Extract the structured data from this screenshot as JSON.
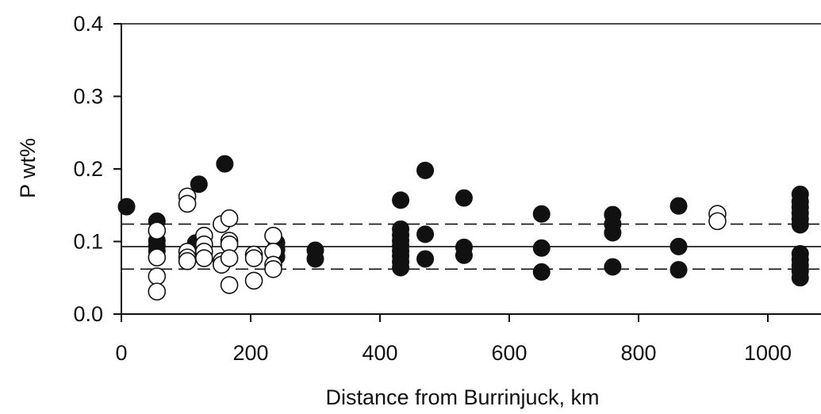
{
  "chart_data": {
    "type": "scatter",
    "xlabel": "Distance from Burrinjuck, km",
    "ylabel": "P wt%",
    "xlim": [
      0,
      1050
    ],
    "ylim": [
      0.0,
      0.4
    ],
    "x_ticks": [
      "0",
      "200",
      "400",
      "600",
      "800",
      "1000"
    ],
    "y_ticks": [
      "0.0",
      "0.1",
      "0.2",
      "0.3",
      "0.4"
    ],
    "grid": false,
    "colors": {
      "filled": "#111111",
      "open_fill": "#ffffff",
      "open_stroke": "#111111"
    },
    "reference_lines": [
      {
        "y": 0.093,
        "style": "solid"
      },
      {
        "y": 0.124,
        "style": "dashed"
      },
      {
        "y": 0.062,
        "style": "dashed"
      }
    ],
    "series": [
      {
        "marker": "filled-circle",
        "points": [
          [
            8,
            0.148
          ],
          [
            55,
            0.128
          ],
          [
            55,
            0.115
          ],
          [
            55,
            0.101
          ],
          [
            55,
            0.094
          ],
          [
            55,
            0.087
          ],
          [
            120,
            0.179
          ],
          [
            115,
            0.098
          ],
          [
            160,
            0.207
          ],
          [
            240,
            0.098
          ],
          [
            240,
            0.089
          ],
          [
            240,
            0.079
          ],
          [
            300,
            0.088
          ],
          [
            300,
            0.076
          ],
          [
            432,
            0.157
          ],
          [
            432,
            0.117
          ],
          [
            432,
            0.109
          ],
          [
            432,
            0.101
          ],
          [
            432,
            0.094
          ],
          [
            432,
            0.087
          ],
          [
            432,
            0.08
          ],
          [
            432,
            0.072
          ],
          [
            432,
            0.064
          ],
          [
            470,
            0.198
          ],
          [
            470,
            0.11
          ],
          [
            470,
            0.076
          ],
          [
            530,
            0.16
          ],
          [
            530,
            0.092
          ],
          [
            530,
            0.081
          ],
          [
            650,
            0.138
          ],
          [
            650,
            0.091
          ],
          [
            650,
            0.058
          ],
          [
            760,
            0.137
          ],
          [
            760,
            0.124
          ],
          [
            760,
            0.112
          ],
          [
            760,
            0.065
          ],
          [
            862,
            0.149
          ],
          [
            862,
            0.093
          ],
          [
            862,
            0.061
          ],
          [
            1050,
            0.165
          ],
          [
            1050,
            0.155
          ],
          [
            1050,
            0.147
          ],
          [
            1050,
            0.139
          ],
          [
            1050,
            0.131
          ],
          [
            1050,
            0.123
          ],
          [
            1050,
            0.083
          ],
          [
            1050,
            0.075
          ],
          [
            1050,
            0.067
          ],
          [
            1050,
            0.059
          ],
          [
            1050,
            0.05
          ]
        ]
      },
      {
        "marker": "open-circle",
        "points": [
          [
            55,
            0.115
          ],
          [
            55,
            0.078
          ],
          [
            55,
            0.052
          ],
          [
            55,
            0.031
          ],
          [
            102,
            0.162
          ],
          [
            102,
            0.152
          ],
          [
            102,
            0.086
          ],
          [
            102,
            0.078
          ],
          [
            102,
            0.073
          ],
          [
            128,
            0.108
          ],
          [
            128,
            0.096
          ],
          [
            128,
            0.086
          ],
          [
            128,
            0.077
          ],
          [
            155,
            0.124
          ],
          [
            155,
            0.073
          ],
          [
            155,
            0.068
          ],
          [
            167,
            0.132
          ],
          [
            167,
            0.101
          ],
          [
            167,
            0.096
          ],
          [
            167,
            0.077
          ],
          [
            167,
            0.04
          ],
          [
            205,
            0.082
          ],
          [
            205,
            0.077
          ],
          [
            205,
            0.046
          ],
          [
            235,
            0.108
          ],
          [
            235,
            0.086
          ],
          [
            235,
            0.068
          ],
          [
            235,
            0.062
          ],
          [
            922,
            0.138
          ],
          [
            922,
            0.128
          ]
        ]
      }
    ]
  }
}
